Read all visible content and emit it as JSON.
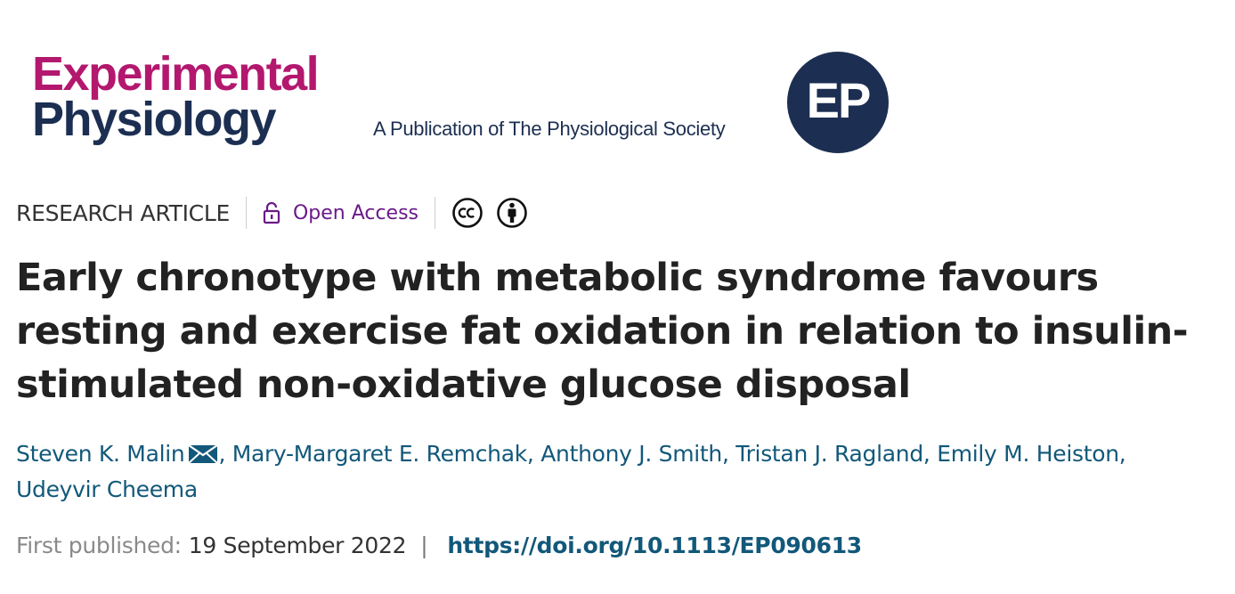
{
  "banner": {
    "journal_line1": "Experimental",
    "journal_line2": "Physiology",
    "publisher": "A Publication of The Physiological Society",
    "badge": "EP",
    "colors": {
      "magenta": "#b3186e",
      "navy": "#1c2f52"
    }
  },
  "meta": {
    "article_type": "RESEARCH ARTICLE",
    "access_label": "Open Access",
    "access_icon": "padlock-open-icon",
    "license_icons": [
      "cc-icon",
      "cc-by-icon"
    ]
  },
  "title": "Early chronotype with metabolic syndrome favours resting and exercise fat oxidation in relation to insulin-stimulated non-oxidative glucose disposal",
  "authors": [
    "Steven K. Malin",
    "Mary-Margaret E. Remchak",
    "Anthony J. Smith",
    "Tristan J. Ragland",
    "Emily M. Heiston",
    "Udeyvir Cheema"
  ],
  "corresponding_icon": "envelope-icon",
  "publication": {
    "label": "First published:",
    "date": "19 September 2022",
    "separator": "|",
    "doi": "https://doi.org/10.1113/EP090613"
  },
  "colors": {
    "link": "#12587a",
    "open_access": "#6b1a8a",
    "title": "#222222"
  }
}
